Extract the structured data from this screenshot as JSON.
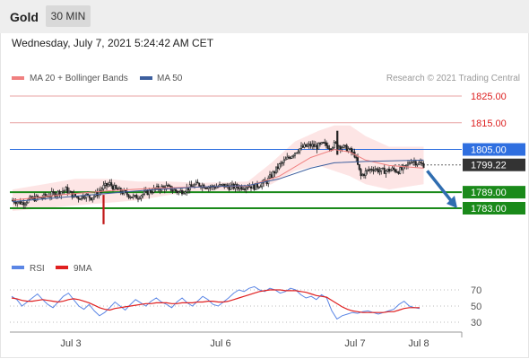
{
  "header": {
    "symbol": "Gold",
    "timeframe": "30 MIN"
  },
  "datetime": "Wednesday, July 7, 2021 5:24:42 AM CET",
  "legend": {
    "ma20_bb": "MA 20 + Bollinger Bands",
    "ma50": "MA 50"
  },
  "credit": "Research © 2021 Trading Central",
  "colors": {
    "resistance": "#e8a3a3",
    "support": "#1a8a1a",
    "pivot": "#2f6fe0",
    "price_box": "#333333",
    "rsi": "#5b86e5",
    "rsi_ma": "#e02020",
    "band": "#fde0e0",
    "ma20": "#f08080",
    "ma50": "#3d5f9e",
    "arrow": "#2f6db0"
  },
  "chart_data": {
    "type": "candlestick",
    "instrument": "Gold",
    "interval": "30 MIN",
    "price_range": [
      1775,
      1830
    ],
    "x_ticks": [
      "Jul 3",
      "Jul 6",
      "Jul 7",
      "Jul 8"
    ],
    "levels": [
      {
        "value": 1825.0,
        "label": "1825.00",
        "kind": "resistance"
      },
      {
        "value": 1815.0,
        "label": "1815.00",
        "kind": "resistance"
      },
      {
        "value": 1805.0,
        "label": "1805.00",
        "kind": "pivot"
      },
      {
        "value": 1789.0,
        "label": "1789.00",
        "kind": "support"
      },
      {
        "value": 1783.0,
        "label": "1783.00",
        "kind": "support"
      }
    ],
    "last_price": {
      "value": 1799.22,
      "label": "1799.22"
    },
    "forecast_target": 1783.0,
    "close_path": [
      [
        0,
        1786
      ],
      [
        6,
        1785
      ],
      [
        12,
        1786.5
      ],
      [
        18,
        1787
      ],
      [
        24,
        1788
      ],
      [
        30,
        1789
      ],
      [
        34,
        1790
      ],
      [
        38,
        1788
      ],
      [
        42,
        1787
      ],
      [
        46,
        1788
      ],
      [
        50,
        1787
      ],
      [
        54,
        1788.5
      ],
      [
        58,
        1791
      ],
      [
        62,
        1792
      ],
      [
        66,
        1790
      ],
      [
        70,
        1789
      ],
      [
        74,
        1788
      ],
      [
        78,
        1787
      ],
      [
        82,
        1788
      ],
      [
        86,
        1789
      ],
      [
        90,
        1790
      ],
      [
        94,
        1790.5
      ],
      [
        98,
        1791
      ],
      [
        102,
        1790
      ],
      [
        106,
        1789
      ],
      [
        110,
        1790
      ],
      [
        114,
        1791
      ],
      [
        118,
        1792
      ],
      [
        122,
        1791.5
      ],
      [
        126,
        1791
      ],
      [
        130,
        1791
      ],
      [
        134,
        1791.5
      ],
      [
        138,
        1791
      ],
      [
        142,
        1791
      ],
      [
        146,
        1791
      ],
      [
        150,
        1791.5
      ],
      [
        154,
        1791
      ],
      [
        158,
        1792
      ],
      [
        162,
        1793
      ],
      [
        166,
        1796
      ],
      [
        170,
        1799
      ],
      [
        174,
        1801
      ],
      [
        178,
        1803
      ],
      [
        182,
        1805
      ],
      [
        186,
        1806
      ],
      [
        190,
        1806.5
      ],
      [
        194,
        1806
      ],
      [
        198,
        1807
      ],
      [
        202,
        1806
      ],
      [
        206,
        1807
      ],
      [
        210,
        1806
      ],
      [
        214,
        1805
      ],
      [
        218,
        1803
      ],
      [
        220,
        1799
      ],
      [
        222,
        1795
      ],
      [
        226,
        1797
      ],
      [
        230,
        1798
      ],
      [
        234,
        1797
      ],
      [
        238,
        1797
      ],
      [
        242,
        1797.5
      ],
      [
        246,
        1797
      ],
      [
        250,
        1798
      ],
      [
        254,
        1801
      ],
      [
        258,
        1800
      ],
      [
        262,
        1799.22
      ]
    ],
    "spikes": [
      {
        "x": 58,
        "low": 1777,
        "high": 1788
      },
      {
        "x": 207,
        "low": 1803,
        "high": 1812
      }
    ],
    "ma20": [
      [
        0,
        1786
      ],
      [
        30,
        1788
      ],
      [
        60,
        1789.5
      ],
      [
        90,
        1790.5
      ],
      [
        120,
        1791
      ],
      [
        150,
        1791.3
      ],
      [
        170,
        1795
      ],
      [
        190,
        1802
      ],
      [
        205,
        1805
      ],
      [
        215,
        1804
      ],
      [
        225,
        1801
      ],
      [
        240,
        1799
      ],
      [
        262,
        1798
      ]
    ],
    "ma50": [
      [
        0,
        1785.5
      ],
      [
        30,
        1787
      ],
      [
        60,
        1788.5
      ],
      [
        90,
        1790
      ],
      [
        120,
        1791
      ],
      [
        150,
        1791.5
      ],
      [
        170,
        1794
      ],
      [
        190,
        1798
      ],
      [
        205,
        1800
      ],
      [
        225,
        1800.5
      ],
      [
        262,
        1801
      ]
    ],
    "bb_upper": [
      [
        0,
        1790
      ],
      [
        20,
        1792
      ],
      [
        40,
        1794
      ],
      [
        60,
        1794
      ],
      [
        80,
        1793
      ],
      [
        100,
        1793
      ],
      [
        120,
        1792.5
      ],
      [
        150,
        1793
      ],
      [
        165,
        1800
      ],
      [
        180,
        1808
      ],
      [
        195,
        1812
      ],
      [
        205,
        1814
      ],
      [
        215,
        1814
      ],
      [
        225,
        1810
      ],
      [
        240,
        1806
      ],
      [
        262,
        1806
      ]
    ],
    "bb_lower": [
      [
        0,
        1782
      ],
      [
        20,
        1783
      ],
      [
        40,
        1784
      ],
      [
        60,
        1785
      ],
      [
        80,
        1786
      ],
      [
        100,
        1788
      ],
      [
        120,
        1789.5
      ],
      [
        150,
        1789.5
      ],
      [
        165,
        1792
      ],
      [
        180,
        1797
      ],
      [
        195,
        1799
      ],
      [
        205,
        1797
      ],
      [
        215,
        1795
      ],
      [
        225,
        1792
      ],
      [
        240,
        1790
      ],
      [
        262,
        1792
      ]
    ],
    "rsi": {
      "name": "RSI",
      "ma_name": "9MA",
      "range": [
        20,
        80
      ],
      "ticks": [
        70,
        50,
        30
      ],
      "values": [
        62,
        58,
        50,
        55,
        60,
        65,
        58,
        52,
        48,
        55,
        62,
        66,
        58,
        50,
        46,
        52,
        44,
        38,
        42,
        48,
        55,
        50,
        45,
        52,
        58,
        54,
        50,
        56,
        60,
        55,
        52,
        48,
        55,
        60,
        54,
        50,
        56,
        62,
        58,
        52,
        50,
        55,
        60,
        66,
        70,
        68,
        72,
        74,
        70,
        68,
        72,
        70,
        66,
        68,
        72,
        70,
        64,
        60,
        62,
        58,
        64,
        60,
        44,
        34,
        38,
        40,
        42,
        41,
        43,
        44,
        42,
        40,
        42,
        44,
        46,
        52,
        56,
        50,
        48,
        47
      ],
      "ma_values": [
        60,
        59,
        57,
        56,
        56,
        57,
        58,
        57,
        56,
        55,
        56,
        58,
        59,
        58,
        56,
        54,
        51,
        48,
        46,
        45,
        47,
        48,
        49,
        50,
        51,
        52,
        53,
        53,
        54,
        54,
        54,
        53,
        53,
        54,
        54,
        54,
        55,
        55,
        56,
        56,
        55,
        55,
        56,
        58,
        60,
        62,
        64,
        66,
        68,
        69,
        70,
        70,
        70,
        69,
        69,
        69,
        68,
        67,
        65,
        63,
        62,
        61,
        57,
        53,
        49,
        46,
        44,
        43,
        42,
        42,
        42,
        42,
        42,
        43,
        43,
        45,
        47,
        48,
        48,
        48
      ]
    }
  }
}
